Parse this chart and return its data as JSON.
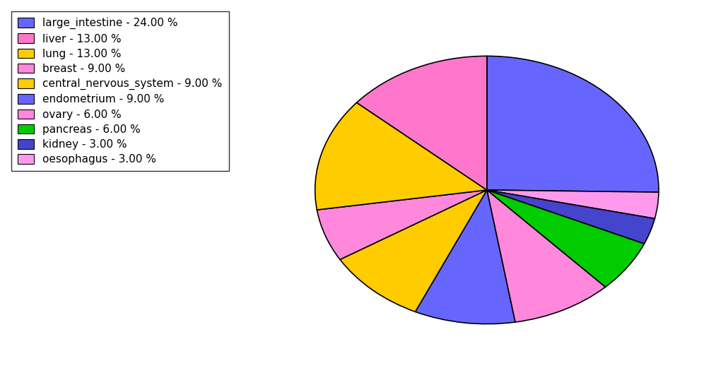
{
  "labels": [
    "large_intestine",
    "oesophagus",
    "kidney",
    "pancreas",
    "breast",
    "endometrium",
    "central_nervous_system",
    "ovary",
    "lung",
    "liver"
  ],
  "values": [
    24,
    3,
    3,
    6,
    9,
    9,
    9,
    6,
    13,
    13
  ],
  "pie_colors": [
    "#6666ff",
    "#ff99ee",
    "#4444cc",
    "#00cc00",
    "#ff88dd",
    "#6666ff",
    "#ffcc00",
    "#ff88dd",
    "#ffcc00",
    "#ff77cc"
  ],
  "legend_order_labels": [
    "large_intestine - 24.00 %",
    "liver - 13.00 %",
    "lung - 13.00 %",
    "breast - 9.00 %",
    "central_nervous_system - 9.00 %",
    "endometrium - 9.00 %",
    "ovary - 6.00 %",
    "pancreas - 6.00 %",
    "kidney - 3.00 %",
    "oesophagus - 3.00 %"
  ],
  "legend_colors": [
    "#6666ff",
    "#ff77cc",
    "#ffcc00",
    "#ff88dd",
    "#ffcc00",
    "#6666ff",
    "#ff88dd",
    "#00cc00",
    "#4444cc",
    "#ff99ee"
  ],
  "startangle": 90,
  "figsize": [
    10.13,
    5.38
  ],
  "dpi": 100,
  "background_color": "#ffffff",
  "legend_fontsize": 11
}
